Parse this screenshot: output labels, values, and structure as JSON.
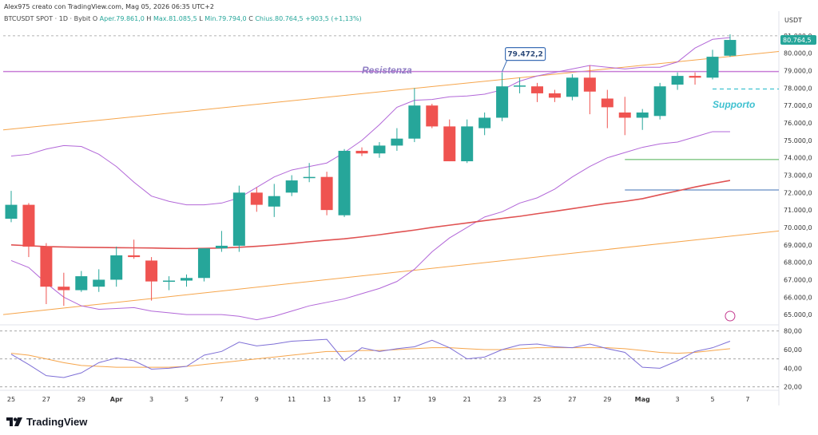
{
  "header": {
    "author_line": "Alex975 creato con TradingView.com, Mag 05, 2026 06:35 UTC+2",
    "symbol": "BTCUSDT SPOT · 1D · Bybit",
    "open_label": "O",
    "open_value": "Aper.79.861,0",
    "high_label": "H",
    "high_value": "Max.81.085,5",
    "low_label": "L",
    "low_value": "Min.79.794,0",
    "close_label": "C",
    "close_value": "Chius.80.764,5",
    "change": "+903,5 (+1,13%)"
  },
  "currency": "USDT",
  "brand": "TradingView",
  "annotations": {
    "resistance": "Resistenza",
    "support": "Supporto",
    "callout": "79.472,2",
    "last_price": "80.764,5"
  },
  "colors": {
    "up": "#26a69a",
    "down": "#ef5350",
    "resistance_line": "#c77dd6",
    "resistance_text": "#8e7cc3",
    "support_text": "#3fc1d0",
    "ma_red": "#e05252",
    "channel": "#f6a54b",
    "bollinger": "#b267d8",
    "rsi": "#7e6fd6",
    "rsi_ma": "#f6a54b",
    "green_level": "#4caf50",
    "blue_level": "#3d6fb6"
  },
  "chart_data": {
    "type": "candlestick",
    "price_axis": {
      "ylim": [
        64500,
        81500
      ],
      "ticks": [
        "81.000,0",
        "80.000,0",
        "79.000,0",
        "78.000,0",
        "77.000,0",
        "76.000,0",
        "75.000,0",
        "74.000,0",
        "73.000,0",
        "72.000,0",
        "71.000,0",
        "70.000,0",
        "69.000,0",
        "68.000,0",
        "67.000,0",
        "66.000,0",
        "65.000,0"
      ],
      "tick_values": [
        81000,
        80000,
        79000,
        78000,
        77000,
        76000,
        75000,
        74000,
        73000,
        72000,
        71000,
        70000,
        69000,
        68000,
        67000,
        66000,
        65000
      ]
    },
    "rsi_axis": {
      "ylim": [
        18,
        84
      ],
      "ticks": [
        "80,00",
        "60,00",
        "40,00",
        "20,00"
      ],
      "tick_values": [
        80,
        60,
        40,
        20
      ]
    },
    "x_ticks": [
      "25",
      "27",
      "29",
      "Apr",
      "3",
      "5",
      "7",
      "9",
      "11",
      "13",
      "15",
      "17",
      "19",
      "21",
      "23",
      "25",
      "27",
      "29",
      "Mag",
      "3",
      "5",
      "7"
    ],
    "candles": [
      {
        "date": "Mar 24",
        "o": 70500,
        "h": 72100,
        "l": 70300,
        "c": 71300
      },
      {
        "date": "Mar 25",
        "o": 71300,
        "h": 71400,
        "l": 68300,
        "c": 68900
      },
      {
        "date": "Mar 26",
        "o": 68900,
        "h": 69100,
        "l": 65600,
        "c": 66600
      },
      {
        "date": "Mar 27",
        "o": 66600,
        "h": 67400,
        "l": 65500,
        "c": 66400
      },
      {
        "date": "Mar 28",
        "o": 66400,
        "h": 67500,
        "l": 66300,
        "c": 67200
      },
      {
        "date": "Mar 29",
        "o": 66600,
        "h": 67600,
        "l": 66300,
        "c": 67000
      },
      {
        "date": "Mar 30",
        "o": 67000,
        "h": 68900,
        "l": 66600,
        "c": 68400
      },
      {
        "date": "Mar 31",
        "o": 68400,
        "h": 69300,
        "l": 68200,
        "c": 68300
      },
      {
        "date": "Apr 1",
        "o": 68100,
        "h": 68300,
        "l": 65800,
        "c": 66900
      },
      {
        "date": "Apr 2",
        "o": 66900,
        "h": 67200,
        "l": 66400,
        "c": 66950
      },
      {
        "date": "Apr 3",
        "o": 66950,
        "h": 67300,
        "l": 66600,
        "c": 67100
      },
      {
        "date": "Apr 4",
        "o": 67100,
        "h": 68800,
        "l": 66900,
        "c": 68800
      },
      {
        "date": "Apr 5",
        "o": 68800,
        "h": 69800,
        "l": 68600,
        "c": 68950
      },
      {
        "date": "Apr 6",
        "o": 68950,
        "h": 72400,
        "l": 68600,
        "c": 72000
      },
      {
        "date": "Apr 7",
        "o": 72000,
        "h": 72300,
        "l": 70900,
        "c": 71300
      },
      {
        "date": "Apr 8",
        "o": 71200,
        "h": 72500,
        "l": 70600,
        "c": 71800
      },
      {
        "date": "Apr 9",
        "o": 72000,
        "h": 73000,
        "l": 71800,
        "c": 72700
      },
      {
        "date": "Apr 10",
        "o": 72900,
        "h": 73700,
        "l": 72600,
        "c": 72900
      },
      {
        "date": "Apr 11",
        "o": 72900,
        "h": 73200,
        "l": 70700,
        "c": 71000
      },
      {
        "date": "Apr 12",
        "o": 70700,
        "h": 74500,
        "l": 70600,
        "c": 74400
      },
      {
        "date": "Apr 13",
        "o": 74400,
        "h": 74600,
        "l": 74100,
        "c": 74250
      },
      {
        "date": "Apr 14",
        "o": 74250,
        "h": 74900,
        "l": 74000,
        "c": 74700
      },
      {
        "date": "Apr 15",
        "o": 74700,
        "h": 75700,
        "l": 74400,
        "c": 75100
      },
      {
        "date": "Apr 16",
        "o": 75100,
        "h": 78000,
        "l": 74900,
        "c": 77000
      },
      {
        "date": "Apr 17",
        "o": 77000,
        "h": 77100,
        "l": 75700,
        "c": 75800
      },
      {
        "date": "Apr 18",
        "o": 75800,
        "h": 76200,
        "l": 73800,
        "c": 73800
      },
      {
        "date": "Apr 19",
        "o": 73800,
        "h": 76200,
        "l": 73700,
        "c": 75800
      },
      {
        "date": "Apr 20",
        "o": 75700,
        "h": 76600,
        "l": 75300,
        "c": 76300
      },
      {
        "date": "Apr 21",
        "o": 76300,
        "h": 78900,
        "l": 76100,
        "c": 78100
      },
      {
        "date": "Apr 22",
        "o": 78100,
        "h": 78600,
        "l": 77700,
        "c": 78150
      },
      {
        "date": "Apr 23",
        "o": 78100,
        "h": 78300,
        "l": 77200,
        "c": 77700
      },
      {
        "date": "Apr 24",
        "o": 77700,
        "h": 77900,
        "l": 77200,
        "c": 77450
      },
      {
        "date": "Apr 25",
        "o": 77500,
        "h": 78800,
        "l": 77300,
        "c": 78600
      },
      {
        "date": "Apr 26",
        "o": 78600,
        "h": 79300,
        "l": 76500,
        "c": 77800
      },
      {
        "date": "Apr 27",
        "o": 77400,
        "h": 77900,
        "l": 75700,
        "c": 76900
      },
      {
        "date": "Apr 28",
        "o": 76600,
        "h": 77500,
        "l": 75300,
        "c": 76300
      },
      {
        "date": "Apr 29",
        "o": 76300,
        "h": 76800,
        "l": 75600,
        "c": 76600
      },
      {
        "date": "Apr 30",
        "o": 76400,
        "h": 78300,
        "l": 76200,
        "c": 78100
      },
      {
        "date": "May 1",
        "o": 78200,
        "h": 78900,
        "l": 77900,
        "c": 78700
      },
      {
        "date": "May 2",
        "o": 78700,
        "h": 78900,
        "l": 78200,
        "c": 78600
      },
      {
        "date": "May 3",
        "o": 78600,
        "h": 80200,
        "l": 78500,
        "c": 79800
      },
      {
        "date": "May 4",
        "o": 79861,
        "h": 81085.5,
        "l": 79794,
        "c": 80764.5
      }
    ],
    "horizontal_levels": [
      {
        "name": "Resistenza",
        "value": 78950
      },
      {
        "name": "Supporto",
        "value": 77950
      },
      {
        "value": 73900
      },
      {
        "value": 72150
      },
      {
        "value": 81000
      }
    ],
    "ma_red": [
      69000,
      68950,
      68900,
      68880,
      68860,
      68850,
      68840,
      68830,
      68820,
      68800,
      68790,
      68800,
      68820,
      68860,
      68920,
      68990,
      69080,
      69180,
      69270,
      69350,
      69460,
      69580,
      69720,
      69850,
      70000,
      70130,
      70260,
      70390,
      70520,
      70640,
      70790,
      70930,
      71080,
      71230,
      71380,
      71500,
      71650,
      71880,
      72100,
      72320,
      72520,
      72700
    ],
    "bollinger_upper": [
      74100,
      74200,
      74500,
      74700,
      74650,
      74200,
      73500,
      72600,
      71800,
      71500,
      71300,
      71300,
      71400,
      71700,
      72300,
      72900,
      73300,
      73500,
      73700,
      74300,
      75000,
      75900,
      76900,
      77300,
      77350,
      77500,
      77550,
      77650,
      77900,
      78400,
      78700,
      78900,
      79100,
      79300,
      79200,
      79100,
      79200,
      79200,
      79500,
      80300,
      80800,
      80900
    ],
    "bollinger_lower": [
      68100,
      67700,
      66800,
      66000,
      65500,
      65300,
      65350,
      65400,
      65200,
      65100,
      65000,
      65000,
      65000,
      64900,
      64700,
      64900,
      65200,
      65500,
      65700,
      65900,
      66200,
      66500,
      66900,
      67600,
      68600,
      69400,
      70000,
      70600,
      70900,
      71400,
      71700,
      72200,
      72900,
      73500,
      74000,
      74300,
      74600,
      74800,
      74900,
      75200,
      75500,
      75500
    ],
    "channel_upper_start": 75600,
    "channel_upper_end": 80100,
    "channel_lower_start": 65000,
    "channel_lower_end": 69800,
    "rsi": [
      55,
      44,
      32,
      30,
      35,
      46,
      51,
      48,
      39,
      40,
      42,
      54,
      58,
      68,
      64,
      66,
      69,
      70,
      71,
      48,
      62,
      58,
      61,
      63,
      70,
      62,
      50,
      52,
      60,
      65,
      66,
      63,
      62,
      66,
      61,
      57,
      41,
      40,
      48,
      58,
      62,
      69
    ],
    "rsi_ma": [
      56,
      54,
      50,
      46,
      43,
      42,
      41,
      41,
      41,
      41,
      42,
      44,
      46,
      48,
      50,
      52,
      54,
      56,
      58,
      58,
      59,
      59,
      60,
      61,
      62,
      62,
      61,
      60,
      60,
      61,
      62,
      62,
      62,
      62,
      62,
      61,
      59,
      57,
      56,
      57,
      59,
      61
    ]
  }
}
